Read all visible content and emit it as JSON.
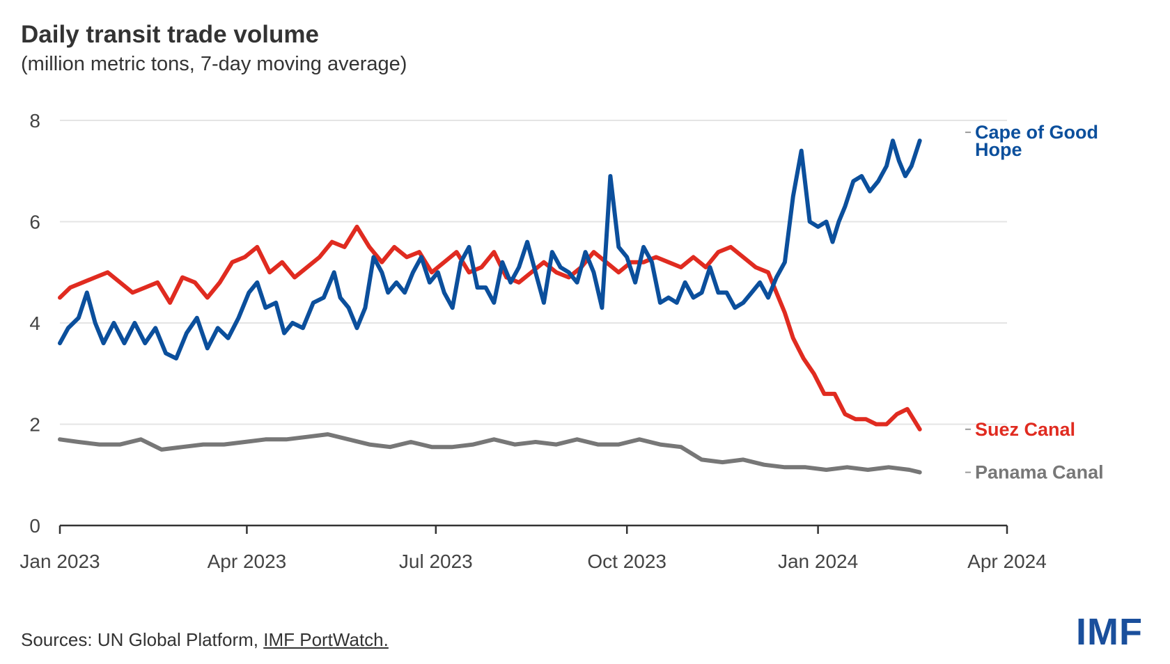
{
  "header": {
    "title": "Daily transit trade volume",
    "subtitle": "(million metric tons, 7-day moving average)"
  },
  "footer": {
    "source_prefix": "Sources: UN Global Platform, ",
    "source_link": "IMF PortWatch.",
    "logo_text": "IMF"
  },
  "colors": {
    "cape": "#0b4f9c",
    "suez": "#e02b20",
    "panama": "#777777",
    "grid": "#e4e4e4",
    "axis": "#333333",
    "logo": "#1a4f9c"
  },
  "chart_data": {
    "type": "line",
    "xaxis_type": "date",
    "xlim": [
      "2023-01-01",
      "2024-04-01"
    ],
    "ylim": [
      0,
      8
    ],
    "yticks": [
      0,
      2,
      4,
      6,
      8
    ],
    "ytick_labels": [
      "0",
      "2",
      "4",
      "6",
      "8"
    ],
    "xticks": [
      "2023-01-01",
      "2023-04-01",
      "2023-07-01",
      "2023-10-01",
      "2024-01-01",
      "2024-04-01"
    ],
    "xtick_labels": [
      "Jan 2023",
      "Apr 2023",
      "Jul 2023",
      "Oct 2023",
      "Jan 2024",
      "Apr 2024"
    ],
    "grid": true,
    "legend": "direct labels at right end of lines",
    "series": [
      {
        "name": "Cape of Good Hope",
        "label_lines": [
          "Cape of Good",
          "Hope"
        ],
        "color_key": "cape",
        "points": [
          [
            "2023-01-01",
            3.6
          ],
          [
            "2023-01-05",
            3.9
          ],
          [
            "2023-01-10",
            4.1
          ],
          [
            "2023-01-14",
            4.6
          ],
          [
            "2023-01-18",
            4.0
          ],
          [
            "2023-01-22",
            3.6
          ],
          [
            "2023-01-27",
            4.0
          ],
          [
            "2023-02-01",
            3.6
          ],
          [
            "2023-02-06",
            4.0
          ],
          [
            "2023-02-11",
            3.6
          ],
          [
            "2023-02-16",
            3.9
          ],
          [
            "2023-02-21",
            3.4
          ],
          [
            "2023-02-26",
            3.3
          ],
          [
            "2023-03-03",
            3.8
          ],
          [
            "2023-03-08",
            4.1
          ],
          [
            "2023-03-13",
            3.5
          ],
          [
            "2023-03-18",
            3.9
          ],
          [
            "2023-03-23",
            3.7
          ],
          [
            "2023-03-28",
            4.1
          ],
          [
            "2023-04-02",
            4.6
          ],
          [
            "2023-04-06",
            4.8
          ],
          [
            "2023-04-10",
            4.3
          ],
          [
            "2023-04-15",
            4.4
          ],
          [
            "2023-04-19",
            3.8
          ],
          [
            "2023-04-23",
            4.0
          ],
          [
            "2023-04-28",
            3.9
          ],
          [
            "2023-05-03",
            4.4
          ],
          [
            "2023-05-08",
            4.5
          ],
          [
            "2023-05-13",
            5.0
          ],
          [
            "2023-05-16",
            4.5
          ],
          [
            "2023-05-20",
            4.3
          ],
          [
            "2023-05-24",
            3.9
          ],
          [
            "2023-05-28",
            4.3
          ],
          [
            "2023-06-01",
            5.3
          ],
          [
            "2023-06-05",
            5.0
          ],
          [
            "2023-06-08",
            4.6
          ],
          [
            "2023-06-12",
            4.8
          ],
          [
            "2023-06-16",
            4.6
          ],
          [
            "2023-06-20",
            5.0
          ],
          [
            "2023-06-24",
            5.3
          ],
          [
            "2023-06-28",
            4.8
          ],
          [
            "2023-07-02",
            5.0
          ],
          [
            "2023-07-05",
            4.6
          ],
          [
            "2023-07-09",
            4.3
          ],
          [
            "2023-07-13",
            5.2
          ],
          [
            "2023-07-17",
            5.5
          ],
          [
            "2023-07-21",
            4.7
          ],
          [
            "2023-07-25",
            4.7
          ],
          [
            "2023-07-29",
            4.4
          ],
          [
            "2023-08-02",
            5.2
          ],
          [
            "2023-08-06",
            4.8
          ],
          [
            "2023-08-10",
            5.1
          ],
          [
            "2023-08-14",
            5.6
          ],
          [
            "2023-08-18",
            5.0
          ],
          [
            "2023-08-22",
            4.4
          ],
          [
            "2023-08-26",
            5.4
          ],
          [
            "2023-08-30",
            5.1
          ],
          [
            "2023-09-03",
            5.0
          ],
          [
            "2023-09-07",
            4.8
          ],
          [
            "2023-09-11",
            5.4
          ],
          [
            "2023-09-15",
            5.0
          ],
          [
            "2023-09-19",
            4.3
          ],
          [
            "2023-09-23",
            6.9
          ],
          [
            "2023-09-27",
            5.5
          ],
          [
            "2023-10-01",
            5.3
          ],
          [
            "2023-10-05",
            4.8
          ],
          [
            "2023-10-09",
            5.5
          ],
          [
            "2023-10-13",
            5.2
          ],
          [
            "2023-10-17",
            4.4
          ],
          [
            "2023-10-21",
            4.5
          ],
          [
            "2023-10-25",
            4.4
          ],
          [
            "2023-10-29",
            4.8
          ],
          [
            "2023-11-02",
            4.5
          ],
          [
            "2023-11-06",
            4.6
          ],
          [
            "2023-11-10",
            5.1
          ],
          [
            "2023-11-14",
            4.6
          ],
          [
            "2023-11-18",
            4.6
          ],
          [
            "2023-11-22",
            4.3
          ],
          [
            "2023-11-26",
            4.4
          ],
          [
            "2023-11-30",
            4.6
          ],
          [
            "2023-12-04",
            4.8
          ],
          [
            "2023-12-08",
            4.5
          ],
          [
            "2023-12-12",
            4.9
          ],
          [
            "2023-12-16",
            5.2
          ],
          [
            "2023-12-20",
            6.5
          ],
          [
            "2023-12-24",
            7.4
          ],
          [
            "2023-12-28",
            6.0
          ],
          [
            "2024-01-01",
            5.9
          ],
          [
            "2024-01-05",
            6.0
          ],
          [
            "2024-01-08",
            5.6
          ],
          [
            "2024-01-11",
            6.0
          ],
          [
            "2024-01-14",
            6.3
          ],
          [
            "2024-01-18",
            6.8
          ],
          [
            "2024-01-22",
            6.9
          ],
          [
            "2024-01-26",
            6.6
          ],
          [
            "2024-01-30",
            6.8
          ],
          [
            "2024-02-03",
            7.1
          ],
          [
            "2024-02-06",
            7.6
          ],
          [
            "2024-02-09",
            7.2
          ],
          [
            "2024-02-12",
            6.9
          ],
          [
            "2024-02-15",
            7.1
          ],
          [
            "2024-02-19",
            7.6
          ]
        ]
      },
      {
        "name": "Suez Canal",
        "label_lines": [
          "Suez Canal"
        ],
        "color_key": "suez",
        "points": [
          [
            "2023-01-01",
            4.5
          ],
          [
            "2023-01-06",
            4.7
          ],
          [
            "2023-01-12",
            4.8
          ],
          [
            "2023-01-18",
            4.9
          ],
          [
            "2023-01-24",
            5.0
          ],
          [
            "2023-01-30",
            4.8
          ],
          [
            "2023-02-05",
            4.6
          ],
          [
            "2023-02-11",
            4.7
          ],
          [
            "2023-02-17",
            4.8
          ],
          [
            "2023-02-23",
            4.4
          ],
          [
            "2023-03-01",
            4.9
          ],
          [
            "2023-03-07",
            4.8
          ],
          [
            "2023-03-13",
            4.5
          ],
          [
            "2023-03-19",
            4.8
          ],
          [
            "2023-03-25",
            5.2
          ],
          [
            "2023-03-31",
            5.3
          ],
          [
            "2023-04-06",
            5.5
          ],
          [
            "2023-04-12",
            5.0
          ],
          [
            "2023-04-18",
            5.2
          ],
          [
            "2023-04-24",
            4.9
          ],
          [
            "2023-04-30",
            5.1
          ],
          [
            "2023-05-06",
            5.3
          ],
          [
            "2023-05-12",
            5.6
          ],
          [
            "2023-05-18",
            5.5
          ],
          [
            "2023-05-24",
            5.9
          ],
          [
            "2023-05-30",
            5.5
          ],
          [
            "2023-06-05",
            5.2
          ],
          [
            "2023-06-11",
            5.5
          ],
          [
            "2023-06-17",
            5.3
          ],
          [
            "2023-06-23",
            5.4
          ],
          [
            "2023-06-29",
            5.0
          ],
          [
            "2023-07-05",
            5.2
          ],
          [
            "2023-07-11",
            5.4
          ],
          [
            "2023-07-17",
            5.0
          ],
          [
            "2023-07-23",
            5.1
          ],
          [
            "2023-07-29",
            5.4
          ],
          [
            "2023-08-04",
            4.9
          ],
          [
            "2023-08-10",
            4.8
          ],
          [
            "2023-08-16",
            5.0
          ],
          [
            "2023-08-22",
            5.2
          ],
          [
            "2023-08-28",
            5.0
          ],
          [
            "2023-09-03",
            4.9
          ],
          [
            "2023-09-09",
            5.1
          ],
          [
            "2023-09-15",
            5.4
          ],
          [
            "2023-09-21",
            5.2
          ],
          [
            "2023-09-27",
            5.0
          ],
          [
            "2023-10-03",
            5.2
          ],
          [
            "2023-10-09",
            5.2
          ],
          [
            "2023-10-15",
            5.3
          ],
          [
            "2023-10-21",
            5.2
          ],
          [
            "2023-10-27",
            5.1
          ],
          [
            "2023-11-02",
            5.3
          ],
          [
            "2023-11-08",
            5.1
          ],
          [
            "2023-11-14",
            5.4
          ],
          [
            "2023-11-20",
            5.5
          ],
          [
            "2023-11-26",
            5.3
          ],
          [
            "2023-12-02",
            5.1
          ],
          [
            "2023-12-08",
            5.0
          ],
          [
            "2023-12-12",
            4.6
          ],
          [
            "2023-12-16",
            4.2
          ],
          [
            "2023-12-20",
            3.7
          ],
          [
            "2023-12-25",
            3.3
          ],
          [
            "2023-12-30",
            3.0
          ],
          [
            "2024-01-04",
            2.6
          ],
          [
            "2024-01-09",
            2.6
          ],
          [
            "2024-01-14",
            2.2
          ],
          [
            "2024-01-19",
            2.1
          ],
          [
            "2024-01-24",
            2.1
          ],
          [
            "2024-01-29",
            2.0
          ],
          [
            "2024-02-03",
            2.0
          ],
          [
            "2024-02-08",
            2.2
          ],
          [
            "2024-02-13",
            2.3
          ],
          [
            "2024-02-19",
            1.9
          ]
        ]
      },
      {
        "name": "Panama Canal",
        "label_lines": [
          "Panama Canal"
        ],
        "color_key": "panama",
        "points": [
          [
            "2023-01-01",
            1.7
          ],
          [
            "2023-01-10",
            1.65
          ],
          [
            "2023-01-20",
            1.6
          ],
          [
            "2023-01-30",
            1.6
          ],
          [
            "2023-02-09",
            1.7
          ],
          [
            "2023-02-19",
            1.5
          ],
          [
            "2023-03-01",
            1.55
          ],
          [
            "2023-03-11",
            1.6
          ],
          [
            "2023-03-21",
            1.6
          ],
          [
            "2023-03-31",
            1.65
          ],
          [
            "2023-04-10",
            1.7
          ],
          [
            "2023-04-20",
            1.7
          ],
          [
            "2023-04-30",
            1.75
          ],
          [
            "2023-05-10",
            1.8
          ],
          [
            "2023-05-20",
            1.7
          ],
          [
            "2023-05-30",
            1.6
          ],
          [
            "2023-06-09",
            1.55
          ],
          [
            "2023-06-19",
            1.65
          ],
          [
            "2023-06-29",
            1.55
          ],
          [
            "2023-07-09",
            1.55
          ],
          [
            "2023-07-19",
            1.6
          ],
          [
            "2023-07-29",
            1.7
          ],
          [
            "2023-08-08",
            1.6
          ],
          [
            "2023-08-18",
            1.65
          ],
          [
            "2023-08-28",
            1.6
          ],
          [
            "2023-09-07",
            1.7
          ],
          [
            "2023-09-17",
            1.6
          ],
          [
            "2023-09-27",
            1.6
          ],
          [
            "2023-10-07",
            1.7
          ],
          [
            "2023-10-17",
            1.6
          ],
          [
            "2023-10-27",
            1.55
          ],
          [
            "2023-11-06",
            1.3
          ],
          [
            "2023-11-16",
            1.25
          ],
          [
            "2023-11-26",
            1.3
          ],
          [
            "2023-12-06",
            1.2
          ],
          [
            "2023-12-16",
            1.15
          ],
          [
            "2023-12-26",
            1.15
          ],
          [
            "2024-01-05",
            1.1
          ],
          [
            "2024-01-15",
            1.15
          ],
          [
            "2024-01-25",
            1.1
          ],
          [
            "2024-02-04",
            1.15
          ],
          [
            "2024-02-14",
            1.1
          ],
          [
            "2024-02-19",
            1.05
          ]
        ]
      }
    ]
  }
}
